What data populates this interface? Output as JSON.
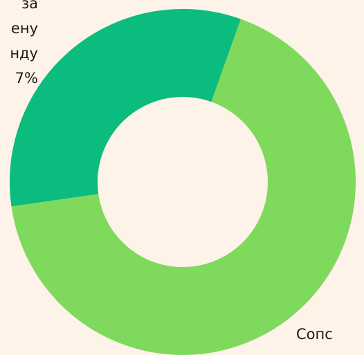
{
  "chart_data": {
    "type": "donut",
    "slices": [
      {
        "name_lines": [
          "Сопс"
        ],
        "value": 67.3,
        "color": "#7fd95c"
      },
      {
        "name_lines": [
          "за",
          "ену",
          "нду",
          "7%"
        ],
        "value": 32.7,
        "color": "#0cbb7e"
      }
    ]
  }
}
